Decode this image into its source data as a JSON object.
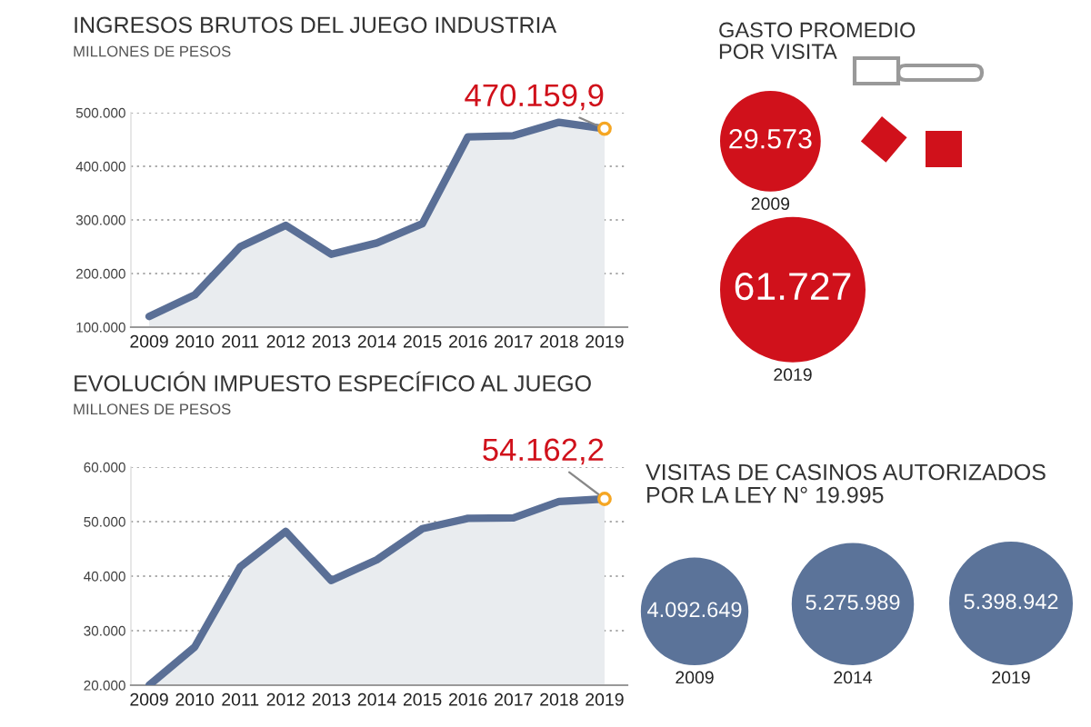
{
  "chart_data": [
    {
      "type": "area",
      "title": "INGRESOS BRUTOS DEL JUEGO INDUSTRIA",
      "subtitle": "MILLONES DE PESOS",
      "categories": [
        "2009",
        "2010",
        "2011",
        "2012",
        "2013",
        "2014",
        "2015",
        "2016",
        "2017",
        "2018",
        "2019"
      ],
      "series": [
        {
          "color": "#5a6f96",
          "values": [
            120000,
            160000,
            250000,
            290000,
            236000,
            257000,
            293000,
            455000,
            457000,
            482000,
            470159.9
          ]
        }
      ],
      "ylim": [
        100000,
        500000
      ],
      "yticks": [
        {
          "value": 100000,
          "label": "100.000"
        },
        {
          "value": 200000,
          "label": "200.000"
        },
        {
          "value": 300000,
          "label": "300.000"
        },
        {
          "value": 400000,
          "label": "400.000"
        },
        {
          "value": 500000,
          "label": "500.000"
        }
      ],
      "grid": "y",
      "marker": "none",
      "annotations": [
        {
          "text": "470.159,9",
          "x": "2019",
          "y": 470159.9
        }
      ]
    },
    {
      "type": "area",
      "title": "EVOLUCIÓN IMPUESTO ESPECÍFICO AL JUEGO",
      "subtitle": "MILLONES DE PESOS",
      "categories": [
        "2009",
        "2010",
        "2011",
        "2012",
        "2013",
        "2014",
        "2015",
        "2016",
        "2017",
        "2018",
        "2019"
      ],
      "series": [
        {
          "color": "#5a6f96",
          "values": [
            20000,
            27000,
            41700,
            48200,
            39200,
            43000,
            48700,
            50600,
            50700,
            53700,
            54162.2
          ]
        }
      ],
      "ylim": [
        20000,
        60000
      ],
      "yticks": [
        {
          "value": 20000,
          "label": "20.000"
        },
        {
          "value": 30000,
          "label": "30.000"
        },
        {
          "value": 40000,
          "label": "40.000"
        },
        {
          "value": 50000,
          "label": "50.000"
        },
        {
          "value": 60000,
          "label": "60.000"
        }
      ],
      "grid": "y",
      "marker": "none",
      "annotations": [
        {
          "text": "54.162,2",
          "x": "2019",
          "y": 54162.2
        }
      ]
    },
    {
      "type": "other",
      "title": "GASTO PROMEDIO\nPOR VISITA",
      "categories": [
        "2009",
        "2019"
      ],
      "values": [
        29573,
        61727
      ],
      "value_labels": [
        "29.573",
        "61.727"
      ],
      "colors": [
        "#d0111b",
        "#d0111b"
      ]
    },
    {
      "type": "other",
      "title": "VISITAS DE CASINOS AUTORIZADOS\nPOR LA LEY N° 19.995",
      "categories": [
        "2009",
        "2014",
        "2019"
      ],
      "values": [
        4092649,
        5275989,
        5398942
      ],
      "value_labels": [
        "4.092.649",
        "5.275.989",
        "5.398.942"
      ],
      "colors": [
        "#5b7399",
        "#5b7399",
        "#5b7399"
      ]
    }
  ]
}
